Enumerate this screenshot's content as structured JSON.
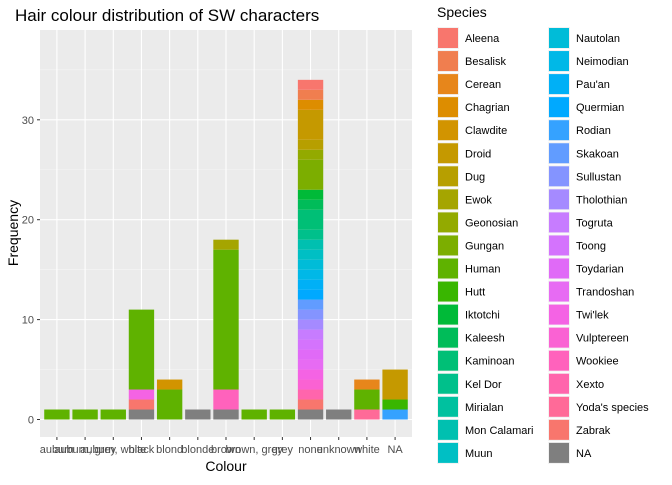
{
  "chart_data": {
    "type": "bar",
    "stacked": true,
    "title": "Hair colour distribution of SW characters",
    "xlabel": "Colour",
    "ylabel": "Frequency",
    "ylim": [
      0,
      37.5
    ],
    "yticks": [
      0,
      10,
      20,
      30
    ],
    "grid": true,
    "legend_title": "Species",
    "legend_position": "right",
    "categories": [
      "auburn",
      "auburn, grey",
      "auburn, white",
      "black",
      "blond",
      "blonde",
      "brown",
      "brown, grey",
      "grey",
      "none",
      "unknown",
      "white",
      "NA"
    ],
    "series": [
      {
        "name": "Aleena",
        "color": "#F8766D",
        "values": [
          0,
          0,
          0,
          0,
          0,
          0,
          0,
          0,
          0,
          1,
          0,
          0,
          0
        ]
      },
      {
        "name": "Besalisk",
        "color": "#F07E4F",
        "values": [
          0,
          0,
          0,
          0,
          0,
          0,
          0,
          0,
          0,
          1,
          0,
          0,
          0
        ]
      },
      {
        "name": "Cerean",
        "color": "#E7861B",
        "values": [
          0,
          0,
          0,
          0,
          0,
          0,
          0,
          0,
          0,
          0,
          0,
          1,
          0
        ]
      },
      {
        "name": "Chagrian",
        "color": "#DD8D00",
        "values": [
          0,
          0,
          0,
          0,
          0,
          0,
          0,
          0,
          0,
          1,
          0,
          0,
          0
        ]
      },
      {
        "name": "Clawdite",
        "color": "#D29400",
        "values": [
          0,
          0,
          0,
          0,
          1,
          0,
          0,
          0,
          0,
          0,
          0,
          0,
          0
        ]
      },
      {
        "name": "Droid",
        "color": "#C59900",
        "values": [
          0,
          0,
          0,
          0,
          0,
          0,
          0,
          0,
          0,
          3,
          0,
          0,
          3
        ]
      },
      {
        "name": "Dug",
        "color": "#B79F00",
        "values": [
          0,
          0,
          0,
          0,
          0,
          0,
          0,
          0,
          0,
          1,
          0,
          0,
          0
        ]
      },
      {
        "name": "Ewok",
        "color": "#A5A500",
        "values": [
          0,
          0,
          0,
          0,
          0,
          0,
          1,
          0,
          0,
          0,
          0,
          0,
          0
        ]
      },
      {
        "name": "Geonosian",
        "color": "#93AA00",
        "values": [
          0,
          0,
          0,
          0,
          0,
          0,
          0,
          0,
          0,
          1,
          0,
          0,
          0
        ]
      },
      {
        "name": "Gungan",
        "color": "#7CAE00",
        "values": [
          0,
          0,
          0,
          0,
          0,
          0,
          0,
          0,
          0,
          3,
          0,
          0,
          0
        ]
      },
      {
        "name": "Human",
        "color": "#5FB200",
        "values": [
          1,
          1,
          1,
          8,
          3,
          0,
          14,
          1,
          1,
          0,
          0,
          2,
          0
        ]
      },
      {
        "name": "Hutt",
        "color": "#39B600",
        "values": [
          0,
          0,
          0,
          0,
          0,
          0,
          0,
          0,
          0,
          0,
          0,
          0,
          1
        ]
      },
      {
        "name": "Iktotchi",
        "color": "#00BA38",
        "values": [
          0,
          0,
          0,
          0,
          0,
          0,
          0,
          0,
          0,
          1,
          0,
          0,
          0
        ]
      },
      {
        "name": "Kaleesh",
        "color": "#00BC59",
        "values": [
          0,
          0,
          0,
          0,
          0,
          0,
          0,
          0,
          0,
          1,
          0,
          0,
          0
        ]
      },
      {
        "name": "Kaminoan",
        "color": "#00BF76",
        "values": [
          0,
          0,
          0,
          0,
          0,
          0,
          0,
          0,
          0,
          2,
          0,
          0,
          0
        ]
      },
      {
        "name": "Kel Dor",
        "color": "#00C08B",
        "values": [
          0,
          0,
          0,
          0,
          0,
          0,
          0,
          0,
          0,
          1,
          0,
          0,
          0
        ]
      },
      {
        "name": "Mirialan",
        "color": "#00C19F",
        "values": [
          0,
          0,
          0,
          0,
          0,
          0,
          0,
          0,
          0,
          0,
          0,
          0,
          0
        ]
      },
      {
        "name": "Mon Calamari",
        "color": "#00C0B0",
        "values": [
          0,
          0,
          0,
          0,
          0,
          0,
          0,
          0,
          0,
          1,
          0,
          0,
          0
        ]
      },
      {
        "name": "Muun",
        "color": "#00BFC4",
        "values": [
          0,
          0,
          0,
          0,
          0,
          0,
          0,
          0,
          0,
          1,
          0,
          0,
          0
        ]
      },
      {
        "name": "Nautolan",
        "color": "#00BCD8",
        "values": [
          0,
          0,
          0,
          0,
          0,
          0,
          0,
          0,
          0,
          1,
          0,
          0,
          0
        ]
      },
      {
        "name": "Neimodian",
        "color": "#00B8E7",
        "values": [
          0,
          0,
          0,
          0,
          0,
          0,
          0,
          0,
          0,
          1,
          0,
          0,
          0
        ]
      },
      {
        "name": "Pau'an",
        "color": "#00B0F6",
        "values": [
          0,
          0,
          0,
          0,
          0,
          0,
          0,
          0,
          0,
          1,
          0,
          0,
          0
        ]
      },
      {
        "name": "Quermian",
        "color": "#00A9FF",
        "values": [
          0,
          0,
          0,
          0,
          0,
          0,
          0,
          0,
          0,
          1,
          0,
          0,
          0
        ]
      },
      {
        "name": "Rodian",
        "color": "#35A2FF",
        "values": [
          0,
          0,
          0,
          0,
          0,
          0,
          0,
          0,
          0,
          0,
          0,
          0,
          1
        ]
      },
      {
        "name": "Skakoan",
        "color": "#619CFF",
        "values": [
          0,
          0,
          0,
          0,
          0,
          0,
          0,
          0,
          0,
          1,
          0,
          0,
          0
        ]
      },
      {
        "name": "Sullustan",
        "color": "#8494FF",
        "values": [
          0,
          0,
          0,
          0,
          0,
          0,
          0,
          0,
          0,
          1,
          0,
          0,
          0
        ]
      },
      {
        "name": "Tholothian",
        "color": "#A58AFF",
        "values": [
          0,
          0,
          0,
          0,
          0,
          0,
          0,
          0,
          0,
          1,
          0,
          0,
          0
        ]
      },
      {
        "name": "Togruta",
        "color": "#C77CFF",
        "values": [
          0,
          0,
          0,
          0,
          0,
          0,
          0,
          0,
          0,
          1,
          0,
          0,
          0
        ]
      },
      {
        "name": "Toong",
        "color": "#D473FD",
        "values": [
          0,
          0,
          0,
          0,
          0,
          0,
          0,
          0,
          0,
          1,
          0,
          0,
          0
        ]
      },
      {
        "name": "Toydarian",
        "color": "#E06AF7",
        "values": [
          0,
          0,
          0,
          0,
          0,
          0,
          0,
          0,
          0,
          1,
          0,
          0,
          0
        ]
      },
      {
        "name": "Trandoshan",
        "color": "#E76BF3",
        "values": [
          0,
          0,
          0,
          0,
          0,
          0,
          0,
          0,
          0,
          1,
          0,
          0,
          0
        ]
      },
      {
        "name": "Twi'lek",
        "color": "#F463E4",
        "values": [
          0,
          0,
          0,
          1,
          0,
          0,
          0,
          0,
          0,
          1,
          0,
          0,
          0
        ]
      },
      {
        "name": "Vulptereen",
        "color": "#FA62D3",
        "values": [
          0,
          0,
          0,
          0,
          0,
          0,
          0,
          0,
          0,
          1,
          0,
          0,
          0
        ]
      },
      {
        "name": "Wookiee",
        "color": "#FF62BC",
        "values": [
          0,
          0,
          0,
          0,
          0,
          0,
          2,
          0,
          0,
          0,
          0,
          0,
          0
        ]
      },
      {
        "name": "Xexto",
        "color": "#FF65AC",
        "values": [
          0,
          0,
          0,
          0,
          0,
          0,
          0,
          0,
          0,
          1,
          0,
          0,
          0
        ]
      },
      {
        "name": "Yoda's species",
        "color": "#FF6A98",
        "values": [
          0,
          0,
          0,
          0,
          0,
          0,
          0,
          0,
          0,
          0,
          0,
          1,
          0
        ]
      },
      {
        "name": "Zabrak",
        "color": "#F8766D",
        "values": [
          0,
          0,
          0,
          1,
          0,
          0,
          0,
          0,
          0,
          1,
          0,
          0,
          0
        ]
      },
      {
        "name": "NA",
        "color": "#7F7F7F",
        "values": [
          0,
          0,
          0,
          1,
          0,
          1,
          1,
          0,
          0,
          1,
          1,
          0,
          0
        ]
      }
    ]
  }
}
